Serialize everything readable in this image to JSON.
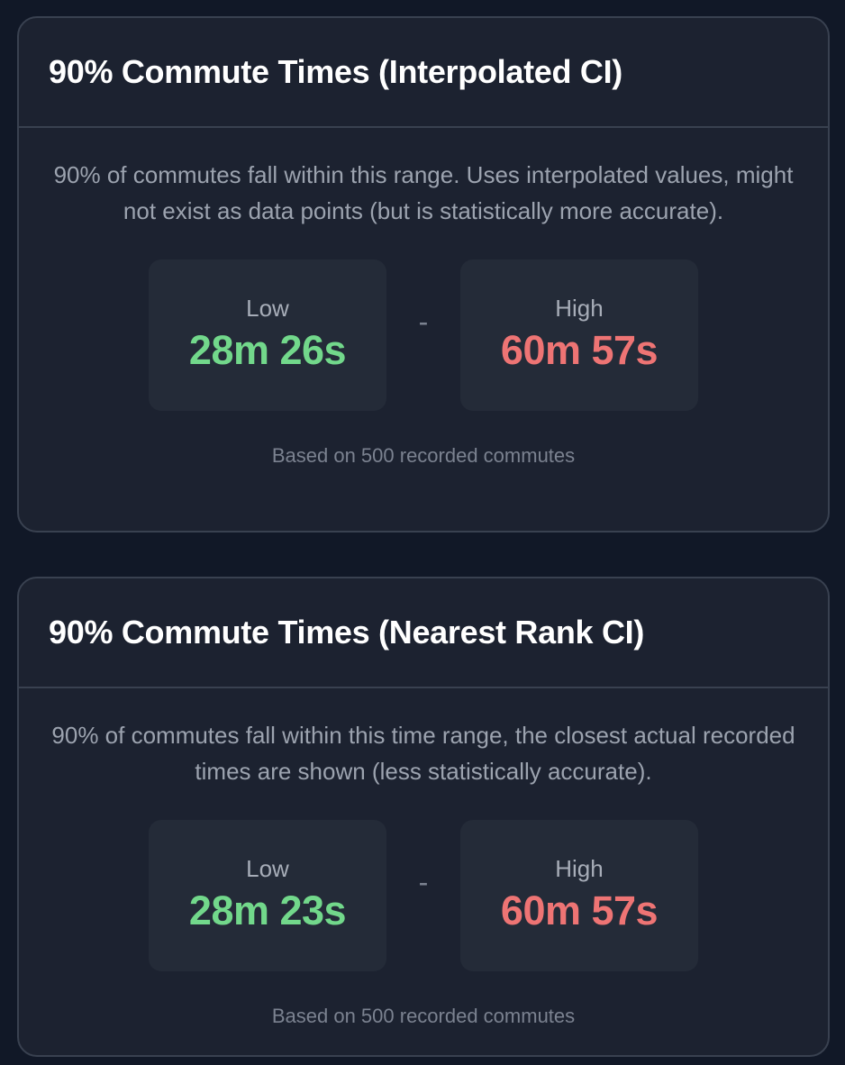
{
  "cards": [
    {
      "title": "90% Commute Times (Interpolated CI)",
      "description": "90% of commutes fall within this range. Uses interpolated values, might not exist as data points (but is statistically more accurate).",
      "low": {
        "label": "Low",
        "value": "28m 26s"
      },
      "separator": "-",
      "high": {
        "label": "High",
        "value": "60m 57s"
      },
      "footnote": "Based on 500 recorded commutes"
    },
    {
      "title": "90% Commute Times (Nearest Rank CI)",
      "description": "90% of commutes fall within this time range, the closest actual recorded times are shown (less statistically accurate).",
      "low": {
        "label": "Low",
        "value": "28m 23s"
      },
      "separator": "-",
      "high": {
        "label": "High",
        "value": "60m 57s"
      },
      "footnote": "Based on 500 recorded commutes"
    }
  ],
  "colors": {
    "background": "#111827",
    "card": "#1c2230",
    "low_value": "#72d88b",
    "high_value": "#ee7474"
  }
}
